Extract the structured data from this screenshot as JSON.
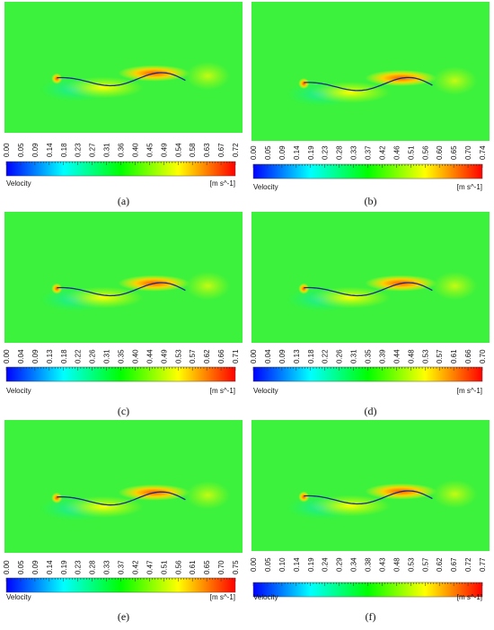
{
  "panels": [
    {
      "label": "(a)",
      "quantity": "Velocity",
      "unit": "[m s^-1]",
      "ticks": [
        "0.00",
        "0.05",
        "0.09",
        "0.14",
        "0.18",
        "0.23",
        "0.27",
        "0.31",
        "0.36",
        "0.40",
        "0.45",
        "0.49",
        "0.54",
        "0.58",
        "0.63",
        "0.67",
        "0.72"
      ]
    },
    {
      "label": "(b)",
      "quantity": "Velocity",
      "unit": "[m s^-1]",
      "ticks": [
        "0.00",
        "0.05",
        "0.09",
        "0.14",
        "0.19",
        "0.23",
        "0.28",
        "0.33",
        "0.37",
        "0.42",
        "0.46",
        "0.51",
        "0.56",
        "0.60",
        "0.65",
        "0.70",
        "0.74"
      ]
    },
    {
      "label": "(c)",
      "quantity": "Velocity",
      "unit": "[m s^-1]",
      "ticks": [
        "0.00",
        "0.04",
        "0.09",
        "0.13",
        "0.18",
        "0.22",
        "0.26",
        "0.31",
        "0.35",
        "0.40",
        "0.44",
        "0.49",
        "0.53",
        "0.57",
        "0.62",
        "0.66",
        "0.71"
      ]
    },
    {
      "label": "(d)",
      "quantity": "Velocity",
      "unit": "[m s^-1]",
      "ticks": [
        "0.00",
        "0.04",
        "0.09",
        "0.13",
        "0.18",
        "0.22",
        "0.26",
        "0.31",
        "0.35",
        "0.39",
        "0.44",
        "0.48",
        "0.53",
        "0.57",
        "0.61",
        "0.66",
        "0.70"
      ]
    },
    {
      "label": "(e)",
      "quantity": "Velocity",
      "unit": "[m s^-1]",
      "ticks": [
        "0.00",
        "0.05",
        "0.09",
        "0.14",
        "0.19",
        "0.23",
        "0.28",
        "0.33",
        "0.37",
        "0.42",
        "0.47",
        "0.51",
        "0.56",
        "0.61",
        "0.65",
        "0.70",
        "0.75"
      ]
    },
    {
      "label": "(f)",
      "quantity": "Velocity",
      "unit": "[m s^-1]",
      "ticks": [
        "0.00",
        "0.05",
        "0.10",
        "0.14",
        "0.19",
        "0.24",
        "0.29",
        "0.34",
        "0.38",
        "0.43",
        "0.48",
        "0.53",
        "0.57",
        "0.62",
        "0.67",
        "0.72",
        "0.77"
      ]
    }
  ]
}
